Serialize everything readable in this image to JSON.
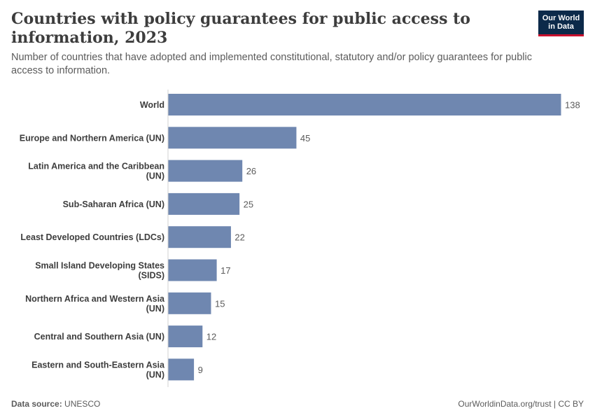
{
  "header": {
    "title": "Countries with policy guarantees for public access to information, 2023",
    "subtitle": "Number of countries that have adopted and implemented constitutional, statutory and/or policy guarantees for public access to information.",
    "logo_line1": "Our World",
    "logo_line2": "in Data"
  },
  "footer": {
    "source_label": "Data source:",
    "source_value": "UNESCO",
    "license": "OurWorldinData.org/trust | CC BY"
  },
  "colors": {
    "bar": "#6f87b0",
    "axis": "#d0d0d0",
    "label": "#3d3d3d",
    "value": "#5b5b5b"
  },
  "chart_data": {
    "type": "bar",
    "orientation": "horizontal",
    "categories": [
      [
        "World"
      ],
      [
        "Europe and Northern America (UN)"
      ],
      [
        "Latin America and the Caribbean",
        "(UN)"
      ],
      [
        "Sub-Saharan Africa (UN)"
      ],
      [
        "Least Developed Countries (LDCs)"
      ],
      [
        "Small Island Developing States",
        "(SIDS)"
      ],
      [
        "Northern Africa and Western Asia",
        "(UN)"
      ],
      [
        "Central and Southern Asia (UN)"
      ],
      [
        "Eastern and South-Eastern Asia",
        "(UN)"
      ]
    ],
    "values": [
      138,
      45,
      26,
      25,
      22,
      17,
      15,
      12,
      9
    ],
    "xlim": [
      0,
      138
    ],
    "grid": false
  }
}
